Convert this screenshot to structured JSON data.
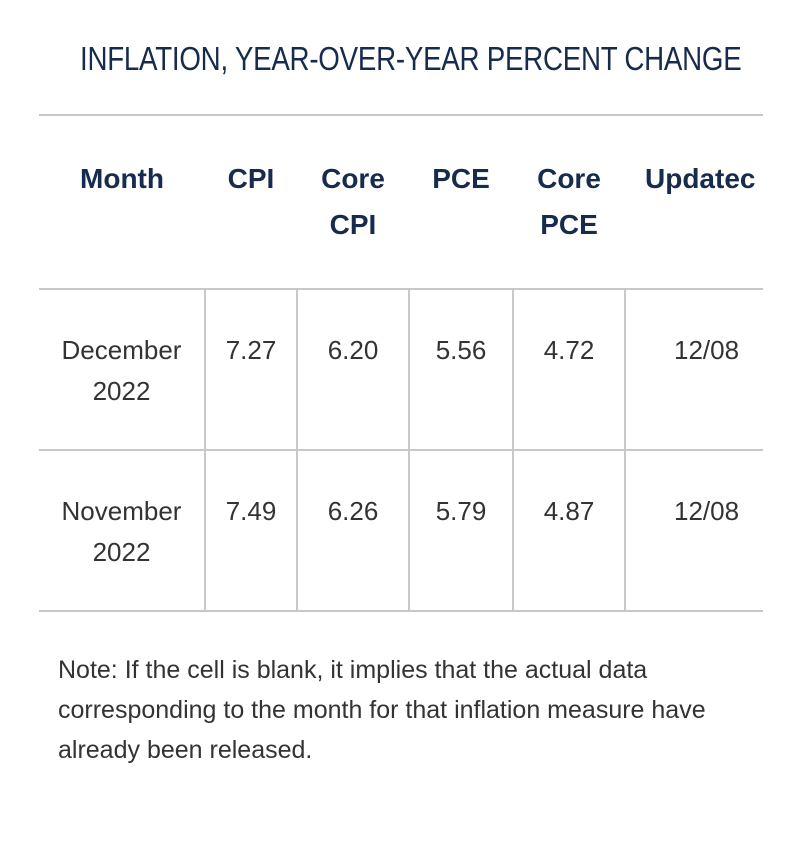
{
  "title": "INFLATION, YEAR-OVER-YEAR PERCENT CHANGE",
  "table": {
    "headers": {
      "month": "Month",
      "cpi": "CPI",
      "core_cpi_line1": "Core",
      "core_cpi_line2": "CPI",
      "pce": "PCE",
      "core_pce_line1": "Core",
      "core_pce_line2": "PCE",
      "updated": "Updatec"
    },
    "rows": [
      {
        "month_line1": "December",
        "month_line2": "2022",
        "cpi": "7.27",
        "core_cpi": "6.20",
        "pce": "5.56",
        "core_pce": "4.72",
        "updated": "12/08"
      },
      {
        "month_line1": "November",
        "month_line2": "2022",
        "cpi": "7.49",
        "core_cpi": "6.26",
        "pce": "5.79",
        "core_pce": "4.87",
        "updated": "12/08"
      }
    ]
  },
  "note": "Note: If the cell is blank, it implies that the actual data corresponding to the month for that inflation measure have already been released.",
  "colors": {
    "heading": "#172b4d",
    "text": "#333333",
    "border": "#c8c8c8",
    "background": "#ffffff"
  }
}
